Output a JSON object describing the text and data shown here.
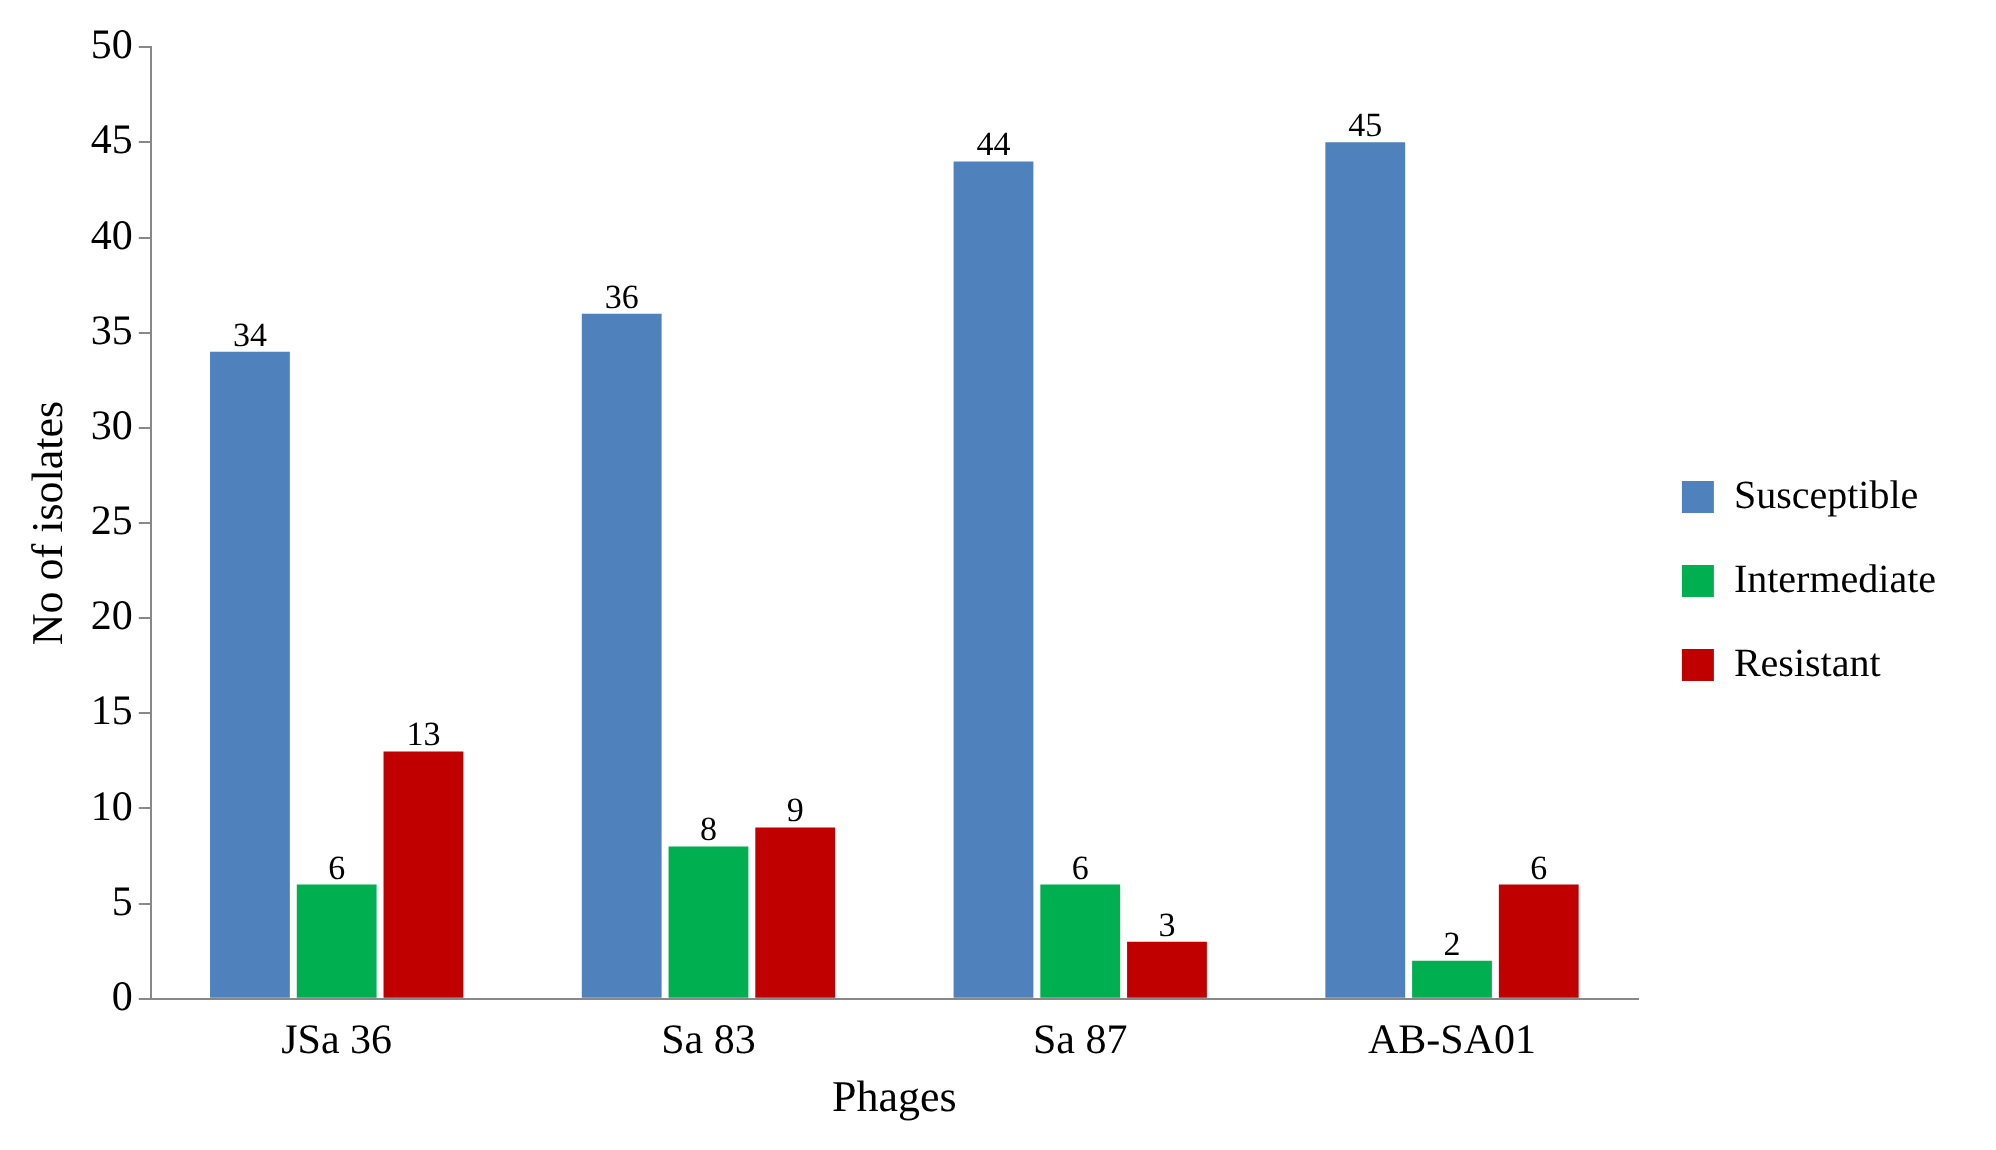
{
  "chart_data": {
    "type": "bar",
    "xlabel": "Phages",
    "ylabel": "No of isolates",
    "categories": [
      "JSa 36",
      "Sa 83",
      "Sa 87",
      "AB-SA01"
    ],
    "series": [
      {
        "name": "Susceptible",
        "color": "#4f81bd",
        "values": [
          34,
          36,
          44,
          45
        ]
      },
      {
        "name": "Intermediate",
        "color": "#00b050",
        "values": [
          6,
          8,
          6,
          2
        ]
      },
      {
        "name": "Resistant",
        "color": "#c00000",
        "values": [
          13,
          9,
          3,
          6
        ]
      }
    ],
    "ylim": [
      0,
      50
    ],
    "yticks": [
      0,
      5,
      10,
      15,
      20,
      25,
      30,
      35,
      40,
      45,
      50
    ],
    "grid": false,
    "legend": "right",
    "data_labels": true
  }
}
